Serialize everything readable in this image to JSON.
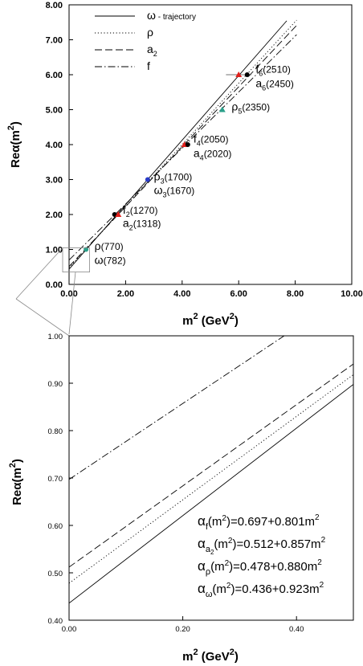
{
  "chart_data": [
    {
      "type": "line",
      "xlabel_main": "m",
      "xlabel_sup": "2",
      "xlabel_unit": "(GeV",
      "xlabel_unit_sup": "2",
      "xlabel_close": ")",
      "ylabel": "Reα(m",
      "ylabel_sup": "2",
      "ylabel_close": ")",
      "xlim": [
        0,
        10
      ],
      "ylim": [
        0,
        8
      ],
      "xticks": [
        "0.00",
        "2.00",
        "4.00",
        "6.00",
        "8.00",
        "10.00"
      ],
      "yticks": [
        "0.00",
        "1.00",
        "2.00",
        "3.00",
        "4.00",
        "5.00",
        "6.00",
        "7.00",
        "8.00"
      ],
      "legend": [
        {
          "label": "ω",
          "suffix": " - trajectory",
          "style": "solid"
        },
        {
          "label": "ρ",
          "suffix": "",
          "style": "dotted"
        },
        {
          "label": "a",
          "sub": "2",
          "suffix": "",
          "style": "dashed"
        },
        {
          "label": "f",
          "suffix": "",
          "style": "dashdot"
        }
      ],
      "series": [
        {
          "name": "ω",
          "intercept": 0.436,
          "slope": 0.923,
          "x_range": [
            0,
            7.7
          ],
          "style": "solid"
        },
        {
          "name": "ρ",
          "intercept": 0.478,
          "slope": 0.88,
          "x_range": [
            0,
            8.05
          ],
          "style": "dotted"
        },
        {
          "name": "a2",
          "intercept": 0.512,
          "slope": 0.857,
          "x_range": [
            0,
            8.05
          ],
          "style": "dashed"
        },
        {
          "name": "f",
          "intercept": 0.697,
          "slope": 0.801,
          "x_range": [
            0,
            8.05
          ],
          "style": "dashdot"
        }
      ],
      "points": [
        {
          "x": 0.6,
          "y": 1.0,
          "color": "#2aa08a",
          "shape": "circle"
        },
        {
          "x": 1.61,
          "y": 2.0,
          "color": "#000000",
          "shape": "circle"
        },
        {
          "x": 1.74,
          "y": 2.0,
          "color": "#e0201c",
          "shape": "triangle"
        },
        {
          "x": 2.78,
          "y": 3.0,
          "color": "#2a3cc8",
          "shape": "circle"
        },
        {
          "x": 4.08,
          "y": 4.0,
          "color": "#e0201c",
          "shape": "triangle"
        },
        {
          "x": 4.2,
          "y": 4.0,
          "color": "#000000",
          "shape": "circle"
        },
        {
          "x": 5.42,
          "y": 5.0,
          "color": "#2aa08a",
          "shape": "triangle"
        },
        {
          "x": 6.0,
          "y": 6.0,
          "color": "#e0201c",
          "shape": "triangle"
        },
        {
          "x": 6.3,
          "y": 6.0,
          "color": "#000000",
          "shape": "circle"
        }
      ],
      "annotations": [
        {
          "sym": "ρ",
          "sub": "",
          "name": "(770)",
          "x": 0.9,
          "y": 1.08
        },
        {
          "sym": "ω",
          "sub": "",
          "name": "(782)",
          "x": 0.9,
          "y": 0.68
        },
        {
          "sym": "f",
          "sub": "2",
          "name": "(1270)",
          "x": 1.9,
          "y": 2.12
        },
        {
          "sym": "a",
          "sub": "2",
          "name": "(1318)",
          "x": 1.9,
          "y": 1.73
        },
        {
          "sym": "ρ",
          "sub": "3",
          "name": "(1700)",
          "x": 3.0,
          "y": 3.07
        },
        {
          "sym": "ω",
          "sub": "3",
          "name": "(1670)",
          "x": 3.0,
          "y": 2.68
        },
        {
          "sym": "f",
          "sub": "4",
          "name": "(2050)",
          "x": 4.4,
          "y": 4.15
        },
        {
          "sym": "a",
          "sub": "4",
          "name": "(2020)",
          "x": 4.4,
          "y": 3.73
        },
        {
          "sym": "ρ",
          "sub": "5",
          "name": "(2350)",
          "x": 5.75,
          "y": 5.07
        },
        {
          "sym": "f",
          "sub": "6",
          "name": "(2510)",
          "x": 6.6,
          "y": 6.15
        },
        {
          "sym": "a",
          "sub": "6",
          "name": "(2450)",
          "x": 6.6,
          "y": 5.73
        }
      ]
    },
    {
      "type": "line",
      "xlabel_main": "m",
      "xlabel_sup": "2",
      "xlabel_unit": "(GeV",
      "xlabel_unit_sup": "2",
      "xlabel_close": ")",
      "ylabel": "Reα(m",
      "ylabel_sup": "2",
      "ylabel_close": ")",
      "xlim": [
        0,
        0.5
      ],
      "ylim": [
        0.4,
        1.0
      ],
      "xticks": [
        "0.00",
        "0.20",
        "0.40"
      ],
      "yticks": [
        "0.40",
        "0.50",
        "0.60",
        "0.70",
        "0.80",
        "0.90",
        "1.00"
      ],
      "series": [
        {
          "name": "ω",
          "intercept": 0.436,
          "slope": 0.923,
          "style": "solid"
        },
        {
          "name": "ρ",
          "intercept": 0.478,
          "slope": 0.88,
          "style": "dotted"
        },
        {
          "name": "a2",
          "intercept": 0.512,
          "slope": 0.857,
          "style": "dashed"
        },
        {
          "name": "f",
          "intercept": 0.697,
          "slope": 0.801,
          "style": "dashdot"
        }
      ],
      "equations": [
        {
          "sub": "f",
          "subsub": "",
          "rhs": "=0.697+0.801m",
          "sup": "2"
        },
        {
          "sub": "a",
          "subsub": "2",
          "rhs": "=0.512+0.857m",
          "sup": "2"
        },
        {
          "sub": "ρ",
          "subsub": "",
          "rhs": "=0.478+0.880m",
          "sup": "2"
        },
        {
          "sub": "ω",
          "subsub": "",
          "rhs": "=0.436+0.923m",
          "sup": "2"
        }
      ]
    }
  ]
}
